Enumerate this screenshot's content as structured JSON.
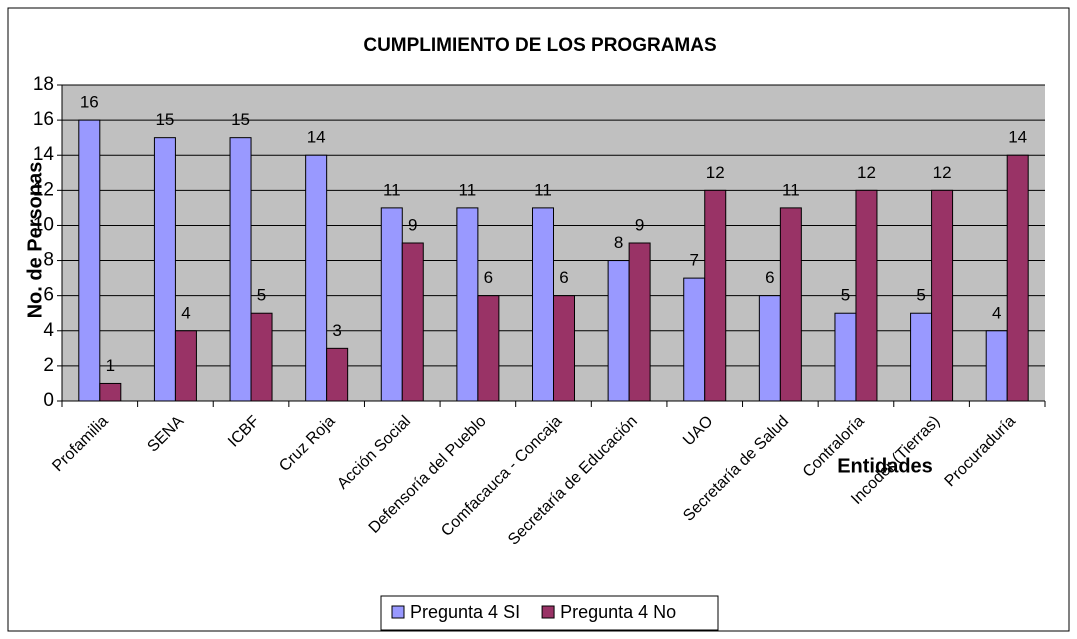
{
  "chart_data": {
    "type": "bar",
    "title": "CUMPLIMIENTO DE LOS PROGRAMAS",
    "y_label": "No. de Personas",
    "x_label": "Entidades",
    "categories": [
      "Profamilia",
      "SENA",
      "ICBF",
      "Cruz Roja",
      "Acción Social",
      "Defensoría del Pueblo",
      "Comfacauca - Concaja",
      "Secretaría de Educación",
      "UAO",
      "Secretaría de Salud",
      "Contraloría",
      "Incoder (Tierras)",
      "Procuraduría"
    ],
    "series": [
      {
        "name": "Pregunta 4 SI",
        "color": "#9999ff",
        "values": [
          16,
          15,
          15,
          14,
          11,
          11,
          11,
          8,
          7,
          6,
          5,
          5,
          4
        ]
      },
      {
        "name": "Pregunta 4 No",
        "color": "#993366",
        "values": [
          1,
          4,
          5,
          3,
          9,
          6,
          6,
          9,
          12,
          11,
          12,
          12,
          14
        ]
      }
    ],
    "ylim": [
      0,
      18
    ],
    "yticks": [
      0,
      2,
      4,
      6,
      8,
      10,
      12,
      14,
      16,
      18
    ],
    "grid": true,
    "legend": "bottom"
  }
}
